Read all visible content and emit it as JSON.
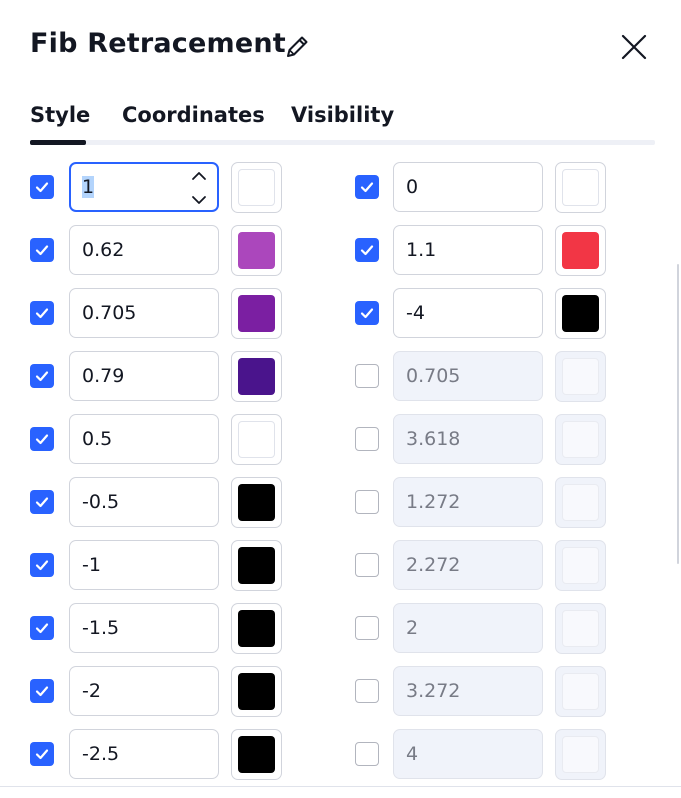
{
  "dialog": {
    "title": "Fib Retracement",
    "icons": {
      "edit": "pencil-icon",
      "close": "close-icon"
    }
  },
  "tabs": [
    {
      "label": "Style",
      "active": true
    },
    {
      "label": "Coordinates",
      "active": false
    },
    {
      "label": "Visibility",
      "active": false
    }
  ],
  "colors": {
    "accent": "#2962ff",
    "checkbox_off": "#b2b5be"
  },
  "levels": {
    "left": [
      {
        "value": "1",
        "checked": true,
        "color": "#ffffff",
        "focused": true
      },
      {
        "value": "0.62",
        "checked": true,
        "color": "#ab47bc"
      },
      {
        "value": "0.705",
        "checked": true,
        "color": "#7b1fa2"
      },
      {
        "value": "0.79",
        "checked": true,
        "color": "#4a148c"
      },
      {
        "value": "0.5",
        "checked": true,
        "color": "#ffffff"
      },
      {
        "value": "-0.5",
        "checked": true,
        "color": "#000000"
      },
      {
        "value": "-1",
        "checked": true,
        "color": "#000000"
      },
      {
        "value": "-1.5",
        "checked": true,
        "color": "#000000"
      },
      {
        "value": "-2",
        "checked": true,
        "color": "#000000"
      },
      {
        "value": "-2.5",
        "checked": true,
        "color": "#000000"
      }
    ],
    "right": [
      {
        "value": "0",
        "checked": true,
        "color": "#ffffff"
      },
      {
        "value": "1.1",
        "checked": true,
        "color": "#f23645"
      },
      {
        "value": "-4",
        "checked": true,
        "color": "#000000"
      },
      {
        "value": "0.705",
        "checked": false,
        "color": ""
      },
      {
        "value": "3.618",
        "checked": false,
        "color": ""
      },
      {
        "value": "1.272",
        "checked": false,
        "color": ""
      },
      {
        "value": "2.272",
        "checked": false,
        "color": ""
      },
      {
        "value": "2",
        "checked": false,
        "color": ""
      },
      {
        "value": "3.272",
        "checked": false,
        "color": ""
      },
      {
        "value": "4",
        "checked": false,
        "color": ""
      }
    ]
  }
}
